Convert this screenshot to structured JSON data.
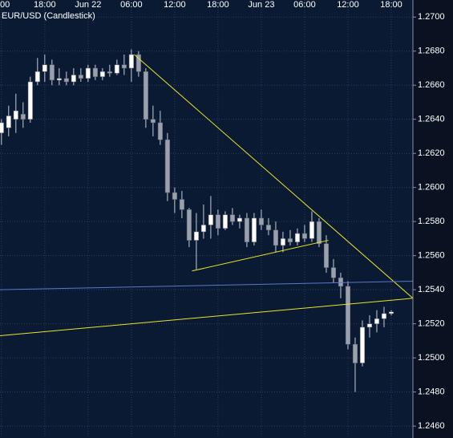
{
  "chart_data": {
    "type": "candlestick",
    "title": "EUR/USD (Candlestick)",
    "x": [
      0,
      1,
      2,
      3,
      4,
      5,
      6,
      7,
      8,
      9,
      10,
      11,
      12,
      13,
      14,
      15,
      16,
      17,
      18,
      19,
      20,
      21,
      22,
      23,
      24,
      25,
      26,
      27,
      28,
      29,
      30,
      31,
      32,
      33,
      34,
      35,
      36,
      37,
      38,
      39,
      40,
      41,
      42,
      43,
      44,
      45,
      46,
      47,
      48,
      49,
      50,
      51,
      52,
      53,
      54
    ],
    "open": [
      1.2632,
      1.2635,
      1.264,
      1.2643,
      1.264,
      1.2662,
      1.2668,
      1.2672,
      1.2663,
      1.2664,
      1.2662,
      1.2666,
      1.2664,
      1.267,
      1.2665,
      1.2668,
      1.2667,
      1.2672,
      1.267,
      1.2678,
      1.2668,
      1.264,
      1.2638,
      1.2628,
      1.2597,
      1.2593,
      1.2587,
      1.2569,
      1.2574,
      1.2578,
      1.2584,
      1.2576,
      1.2584,
      1.258,
      1.2582,
      1.2568,
      1.2582,
      1.2578,
      1.2575,
      1.2566,
      1.257,
      1.2568,
      1.2573,
      1.257,
      1.258,
      1.2567,
      1.2553,
      1.2547,
      1.2542,
      1.2508,
      1.2497,
      1.2518,
      1.252,
      1.2523,
      1.2526
    ],
    "high": [
      1.264,
      1.2648,
      1.2655,
      1.265,
      1.2665,
      1.2676,
      1.2678,
      1.2675,
      1.267,
      1.2668,
      1.267,
      1.267,
      1.2672,
      1.2672,
      1.267,
      1.2672,
      1.2675,
      1.2678,
      1.2681,
      1.268,
      1.267,
      1.2648,
      1.2645,
      1.2632,
      1.26,
      1.2598,
      1.2588,
      1.2585,
      1.259,
      1.2595,
      1.2587,
      1.2586,
      1.2588,
      1.2584,
      1.2585,
      1.2585,
      1.2587,
      1.2582,
      1.258,
      1.2574,
      1.2575,
      1.2576,
      1.2578,
      1.2586,
      1.2582,
      1.2572,
      1.2558,
      1.255,
      1.2545,
      1.2512,
      1.2522,
      1.2525,
      1.2528,
      1.253,
      1.2528
    ],
    "low": [
      1.2625,
      1.263,
      1.2632,
      1.2635,
      1.2638,
      1.266,
      1.2662,
      1.266,
      1.266,
      1.266,
      1.266,
      1.2662,
      1.2662,
      1.2663,
      1.2663,
      1.2665,
      1.2666,
      1.2666,
      1.2662,
      1.2665,
      1.2635,
      1.263,
      1.2625,
      1.2592,
      1.2585,
      1.2582,
      1.2565,
      1.2552,
      1.257,
      1.257,
      1.2572,
      1.2575,
      1.2578,
      1.2576,
      1.2565,
      1.2566,
      1.2575,
      1.2572,
      1.2562,
      1.2562,
      1.2566,
      1.2566,
      1.2568,
      1.2568,
      1.2565,
      1.255,
      1.2544,
      1.2535,
      1.2505,
      1.248,
      1.2495,
      1.2512,
      1.2515,
      1.2518,
      1.2525
    ],
    "close": [
      1.2638,
      1.2642,
      1.2645,
      1.264,
      1.2662,
      1.2668,
      1.2672,
      1.2663,
      1.2664,
      1.2662,
      1.2666,
      1.2664,
      1.267,
      1.2665,
      1.2668,
      1.2667,
      1.2672,
      1.267,
      1.2678,
      1.2668,
      1.264,
      1.2638,
      1.2628,
      1.2597,
      1.2593,
      1.2587,
      1.2569,
      1.2574,
      1.2578,
      1.2584,
      1.2576,
      1.2584,
      1.258,
      1.2582,
      1.2568,
      1.2582,
      1.2578,
      1.2575,
      1.2566,
      1.257,
      1.2568,
      1.2573,
      1.257,
      1.258,
      1.2567,
      1.2553,
      1.2547,
      1.2542,
      1.2508,
      1.2497,
      1.2518,
      1.252,
      1.2523,
      1.2526,
      1.2527
    ],
    "up_color": "#ffffff",
    "down_color": "#9aa1ad",
    "wick_color": "#c8ccd4",
    "xlim": [
      -0.2,
      57
    ],
    "xticks": [
      {
        "value": 0,
        "label": "00"
      },
      {
        "value": 6,
        "label": "18:00"
      },
      {
        "value": 12,
        "label": "Jun 22"
      },
      {
        "value": 18,
        "label": "06:00"
      },
      {
        "value": 24,
        "label": "12:00"
      },
      {
        "value": 30,
        "label": "18:00"
      },
      {
        "value": 36,
        "label": "Jun 23"
      },
      {
        "value": 42,
        "label": "06:00"
      },
      {
        "value": 48,
        "label": "12:00"
      },
      {
        "value": 54,
        "label": "18:00"
      }
    ],
    "ylim": [
      1.2453,
      1.271
    ],
    "yticks": [
      {
        "value": 1.246,
        "label": "1.2460"
      },
      {
        "value": 1.248,
        "label": "1.2480"
      },
      {
        "value": 1.25,
        "label": "1.2500"
      },
      {
        "value": 1.252,
        "label": "1.2520"
      },
      {
        "value": 1.254,
        "label": "1.2540"
      },
      {
        "value": 1.256,
        "label": "1.2560"
      },
      {
        "value": 1.258,
        "label": "1.2580"
      },
      {
        "value": 1.26,
        "label": "1.2600"
      },
      {
        "value": 1.262,
        "label": "1.2620"
      },
      {
        "value": 1.264,
        "label": "1.2640"
      },
      {
        "value": 1.266,
        "label": "1.2660"
      },
      {
        "value": 1.268,
        "label": "1.2680"
      },
      {
        "value": 1.27,
        "label": "1.2700"
      }
    ],
    "grid": true,
    "trendlines": [
      {
        "color": "#e6e62a",
        "x": [
          18.4,
          57
        ],
        "y": [
          1.2678,
          1.2535
        ]
      },
      {
        "color": "#e6e62a",
        "x": [
          26.4,
          45.3
        ],
        "y": [
          1.2551,
          1.2569
        ]
      },
      {
        "color": "#e6e62a",
        "x": [
          -0.2,
          57
        ],
        "y": [
          1.2513,
          1.2535
        ]
      },
      {
        "color": "#5a78c8",
        "x": [
          -0.2,
          57
        ],
        "y": [
          1.254,
          1.2545
        ]
      }
    ]
  }
}
